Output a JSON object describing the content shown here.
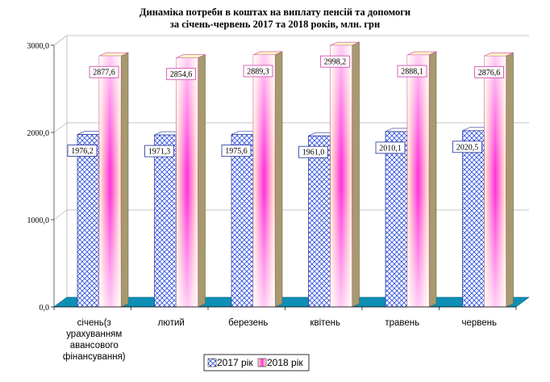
{
  "chart_data": {
    "type": "bar",
    "title_line1": "Динаміка потреби в коштах на виплату пенсій та допомоги",
    "title_line2": "за січень-червень 2017 та 2018 років, млн. грн",
    "categories": [
      [
        "січень(з",
        "урахуванням",
        "авансового",
        "фінансування)"
      ],
      [
        "лютий"
      ],
      [
        "березень"
      ],
      [
        "квітень"
      ],
      [
        "травень"
      ],
      [
        "червень"
      ]
    ],
    "series": [
      {
        "name": "2017 рік",
        "values": [
          1976.2,
          1971.3,
          1975.6,
          1961.0,
          2010.1,
          2020.5
        ],
        "labels": [
          "1976,2",
          "1971,3",
          "1975,6",
          "1961,0",
          "2010,1",
          "2020,5"
        ],
        "color": "#3355dd"
      },
      {
        "name": "2018 рік",
        "values": [
          2877.6,
          2854.6,
          2889.3,
          2998.2,
          2888.1,
          2876.6
        ],
        "labels": [
          "2877,6",
          "2854,6",
          "2889,3",
          "2998,2",
          "2888,1",
          "2876,6"
        ],
        "color": "#ff33cc"
      }
    ],
    "ylim": [
      0,
      3000
    ],
    "yticks": [
      "0,0",
      "1000,0",
      "2000,0",
      "3000,0"
    ],
    "legend_position": "bottom",
    "grid": true
  }
}
